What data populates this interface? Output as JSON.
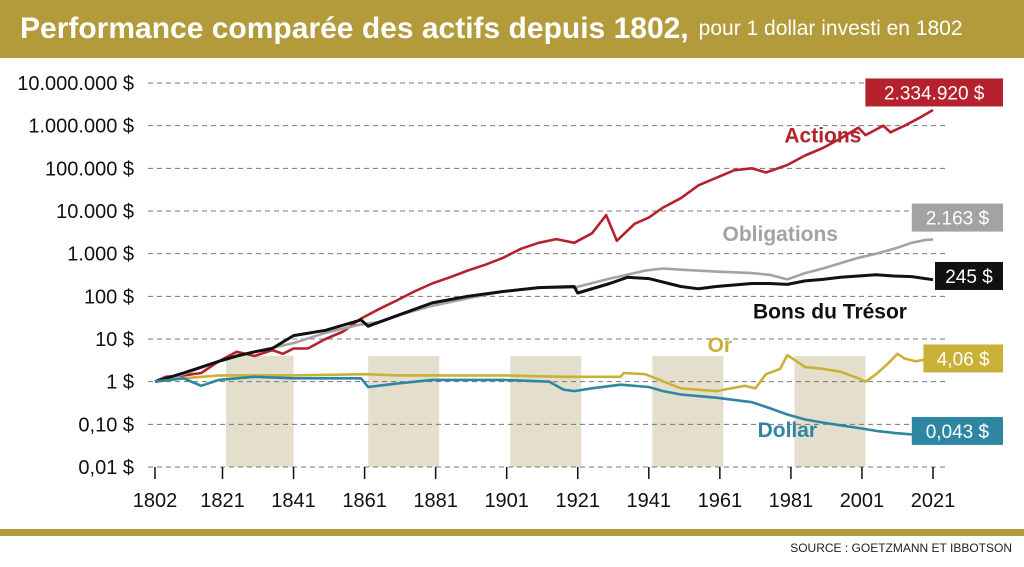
{
  "header": {
    "title": "Performance comparée des actifs depuis 1802,",
    "subtitle": "pour 1 dollar investi en 1802"
  },
  "footer": {
    "source": "SOURCE : GOETZMANN ET IBBOTSON"
  },
  "chart_data": {
    "type": "line",
    "y_scale": "log",
    "ylim": [
      0.01,
      10000000
    ],
    "xlim": [
      1802,
      2021
    ],
    "x_ticks": [
      "1802",
      "1821",
      "1841",
      "1861",
      "1881",
      "1901",
      "1921",
      "1941",
      "1961",
      "1981",
      "2001",
      "2021"
    ],
    "y_ticks": [
      {
        "value": 10000000,
        "label": "10.000.000 $"
      },
      {
        "value": 1000000,
        "label": "1.000.000 $"
      },
      {
        "value": 100000,
        "label": "100.000 $"
      },
      {
        "value": 10000,
        "label": "10.000 $"
      },
      {
        "value": 1000,
        "label": "1.000 $"
      },
      {
        "value": 100,
        "label": "100 $"
      },
      {
        "value": 10,
        "label": "10 $"
      },
      {
        "value": 1,
        "label": "1 $"
      },
      {
        "value": 0.1,
        "label": "0,10 $"
      },
      {
        "value": 0.01,
        "label": "0,01 $"
      }
    ],
    "grid": "horizontal dashed",
    "shaded_periods": [
      [
        1822,
        1841
      ],
      [
        1862,
        1882
      ],
      [
        1902,
        1922
      ],
      [
        1942,
        1962
      ],
      [
        1982,
        2002
      ]
    ],
    "series": [
      {
        "name": "Actions",
        "color": "#b5222e",
        "end_label": "2.334.920 $",
        "points": [
          [
            1802,
            1
          ],
          [
            1805,
            1.3
          ],
          [
            1810,
            1.4
          ],
          [
            1815,
            1.6
          ],
          [
            1820,
            3
          ],
          [
            1825,
            5
          ],
          [
            1830,
            4
          ],
          [
            1835,
            5.5
          ],
          [
            1838,
            4.5
          ],
          [
            1841,
            6
          ],
          [
            1845,
            6
          ],
          [
            1850,
            10
          ],
          [
            1855,
            15
          ],
          [
            1860,
            30
          ],
          [
            1865,
            50
          ],
          [
            1870,
            80
          ],
          [
            1875,
            130
          ],
          [
            1880,
            200
          ],
          [
            1885,
            280
          ],
          [
            1890,
            400
          ],
          [
            1895,
            550
          ],
          [
            1900,
            800
          ],
          [
            1905,
            1300
          ],
          [
            1910,
            1800
          ],
          [
            1915,
            2200
          ],
          [
            1920,
            1800
          ],
          [
            1925,
            3000
          ],
          [
            1929,
            8000
          ],
          [
            1932,
            2000
          ],
          [
            1937,
            5000
          ],
          [
            1941,
            7000
          ],
          [
            1945,
            12000
          ],
          [
            1950,
            20000
          ],
          [
            1955,
            40000
          ],
          [
            1960,
            60000
          ],
          [
            1965,
            90000
          ],
          [
            1970,
            100000
          ],
          [
            1974,
            80000
          ],
          [
            1980,
            120000
          ],
          [
            1985,
            200000
          ],
          [
            1990,
            300000
          ],
          [
            1995,
            500000
          ],
          [
            2000,
            900000
          ],
          [
            2002,
            600000
          ],
          [
            2007,
            1000000
          ],
          [
            2009,
            700000
          ],
          [
            2013,
            1000000
          ],
          [
            2017,
            1500000
          ],
          [
            2021,
            2334920
          ]
        ]
      },
      {
        "name": "Obligations",
        "color": "#a3a3a3",
        "end_label": "2.163 $",
        "points": [
          [
            1802,
            1
          ],
          [
            1810,
            1.5
          ],
          [
            1820,
            3
          ],
          [
            1830,
            5
          ],
          [
            1841,
            8
          ],
          [
            1850,
            14
          ],
          [
            1860,
            22
          ],
          [
            1865,
            25
          ],
          [
            1870,
            35
          ],
          [
            1880,
            60
          ],
          [
            1890,
            90
          ],
          [
            1900,
            130
          ],
          [
            1910,
            160
          ],
          [
            1920,
            160
          ],
          [
            1930,
            260
          ],
          [
            1940,
            400
          ],
          [
            1945,
            450
          ],
          [
            1950,
            420
          ],
          [
            1960,
            380
          ],
          [
            1970,
            350
          ],
          [
            1975,
            320
          ],
          [
            1980,
            250
          ],
          [
            1985,
            350
          ],
          [
            1990,
            450
          ],
          [
            1995,
            600
          ],
          [
            2000,
            800
          ],
          [
            2005,
            1000
          ],
          [
            2010,
            1300
          ],
          [
            2015,
            1800
          ],
          [
            2019,
            2100
          ],
          [
            2021,
            2163
          ]
        ]
      },
      {
        "name": "Bons du Trésor",
        "color": "#111111",
        "end_label": "245 $",
        "points": [
          [
            1802,
            1
          ],
          [
            1810,
            1.6
          ],
          [
            1820,
            3
          ],
          [
            1825,
            4
          ],
          [
            1830,
            5
          ],
          [
            1835,
            6
          ],
          [
            1841,
            12
          ],
          [
            1850,
            16
          ],
          [
            1860,
            28
          ],
          [
            1862,
            20
          ],
          [
            1870,
            35
          ],
          [
            1880,
            70
          ],
          [
            1890,
            100
          ],
          [
            1900,
            130
          ],
          [
            1910,
            160
          ],
          [
            1920,
            170
          ],
          [
            1921,
            120
          ],
          [
            1930,
            200
          ],
          [
            1935,
            280
          ],
          [
            1941,
            260
          ],
          [
            1950,
            170
          ],
          [
            1955,
            150
          ],
          [
            1960,
            170
          ],
          [
            1970,
            200
          ],
          [
            1975,
            200
          ],
          [
            1980,
            190
          ],
          [
            1985,
            230
          ],
          [
            1990,
            250
          ],
          [
            1995,
            280
          ],
          [
            2000,
            300
          ],
          [
            2005,
            320
          ],
          [
            2010,
            300
          ],
          [
            2015,
            290
          ],
          [
            2021,
            245
          ]
        ]
      },
      {
        "name": "Or",
        "color": "#c9b138",
        "end_label": "4,06 $",
        "points": [
          [
            1802,
            1
          ],
          [
            1810,
            1.2
          ],
          [
            1820,
            1.4
          ],
          [
            1841,
            1.4
          ],
          [
            1861,
            1.5
          ],
          [
            1870,
            1.4
          ],
          [
            1880,
            1.4
          ],
          [
            1900,
            1.4
          ],
          [
            1917,
            1.3
          ],
          [
            1933,
            1.3
          ],
          [
            1934,
            1.6
          ],
          [
            1940,
            1.5
          ],
          [
            1950,
            0.7
          ],
          [
            1960,
            0.6
          ],
          [
            1968,
            0.8
          ],
          [
            1971,
            0.7
          ],
          [
            1974,
            1.5
          ],
          [
            1978,
            2
          ],
          [
            1980,
            4.2
          ],
          [
            1985,
            2.2
          ],
          [
            1990,
            2
          ],
          [
            1995,
            1.7
          ],
          [
            2000,
            1.2
          ],
          [
            2002,
            1.0
          ],
          [
            2005,
            1.5
          ],
          [
            2008,
            2.5
          ],
          [
            2011,
            4.5
          ],
          [
            2013,
            3.5
          ],
          [
            2016,
            3
          ],
          [
            2019,
            3.3
          ],
          [
            2021,
            4.06
          ]
        ]
      },
      {
        "name": "Dollar",
        "color": "#2e86a3",
        "end_label": "0,043 $",
        "points": [
          [
            1802,
            1
          ],
          [
            1810,
            1.2
          ],
          [
            1815,
            0.8
          ],
          [
            1820,
            1.1
          ],
          [
            1830,
            1.3
          ],
          [
            1841,
            1.2
          ],
          [
            1850,
            1.2
          ],
          [
            1860,
            1.2
          ],
          [
            1862,
            0.75
          ],
          [
            1870,
            0.9
          ],
          [
            1880,
            1.1
          ],
          [
            1900,
            1.1
          ],
          [
            1913,
            1.0
          ],
          [
            1917,
            0.65
          ],
          [
            1920,
            0.6
          ],
          [
            1925,
            0.7
          ],
          [
            1933,
            0.85
          ],
          [
            1941,
            0.75
          ],
          [
            1945,
            0.6
          ],
          [
            1950,
            0.5
          ],
          [
            1960,
            0.42
          ],
          [
            1970,
            0.33
          ],
          [
            1975,
            0.24
          ],
          [
            1980,
            0.17
          ],
          [
            1985,
            0.13
          ],
          [
            1990,
            0.11
          ],
          [
            1995,
            0.095
          ],
          [
            2000,
            0.082
          ],
          [
            2005,
            0.07
          ],
          [
            2010,
            0.063
          ],
          [
            2015,
            0.058
          ],
          [
            2021,
            0.043
          ]
        ]
      }
    ]
  }
}
